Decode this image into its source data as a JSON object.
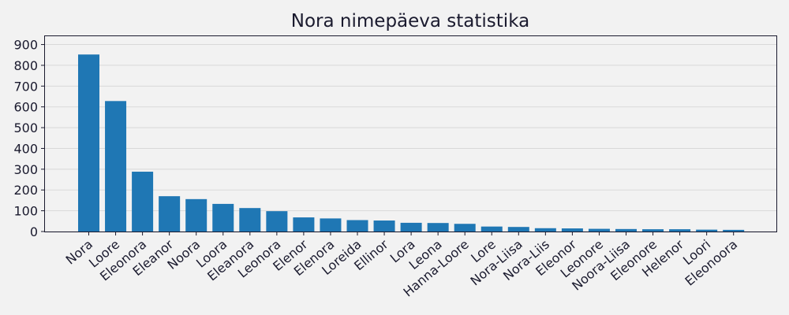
{
  "chart_data": {
    "type": "bar",
    "title": "Nora nimepäeva statistika",
    "xlabel": "",
    "ylabel": "",
    "ylim": [
      0,
      940
    ],
    "yticks": [
      0,
      100,
      200,
      300,
      400,
      500,
      600,
      700,
      800,
      900
    ],
    "grid": "horizontal",
    "categories": [
      "Nora",
      "Loore",
      "Eleonora",
      "Eleanor",
      "Noora",
      "Loora",
      "Eleanora",
      "Leonora",
      "Elenor",
      "Elenora",
      "Loreida",
      "Ellinor",
      "Lora",
      "Leona",
      "Hanna-Loore",
      "Lore",
      "Nora-Liisa",
      "Nora-Liis",
      "Eleonor",
      "Leonore",
      "Noora-Liisa",
      "Eleonore",
      "Helenor",
      "Loori",
      "Eleonoora"
    ],
    "values": [
      852,
      628,
      288,
      170,
      156,
      133,
      113,
      98,
      68,
      63,
      55,
      53,
      42,
      41,
      37,
      24,
      22,
      16,
      15,
      13,
      12,
      11,
      11,
      9,
      8
    ],
    "colors": {
      "bar": "#1f77b4",
      "background": "#f2f2f2",
      "text": "#1a1a2e",
      "grid": "#d9d9d9"
    }
  }
}
